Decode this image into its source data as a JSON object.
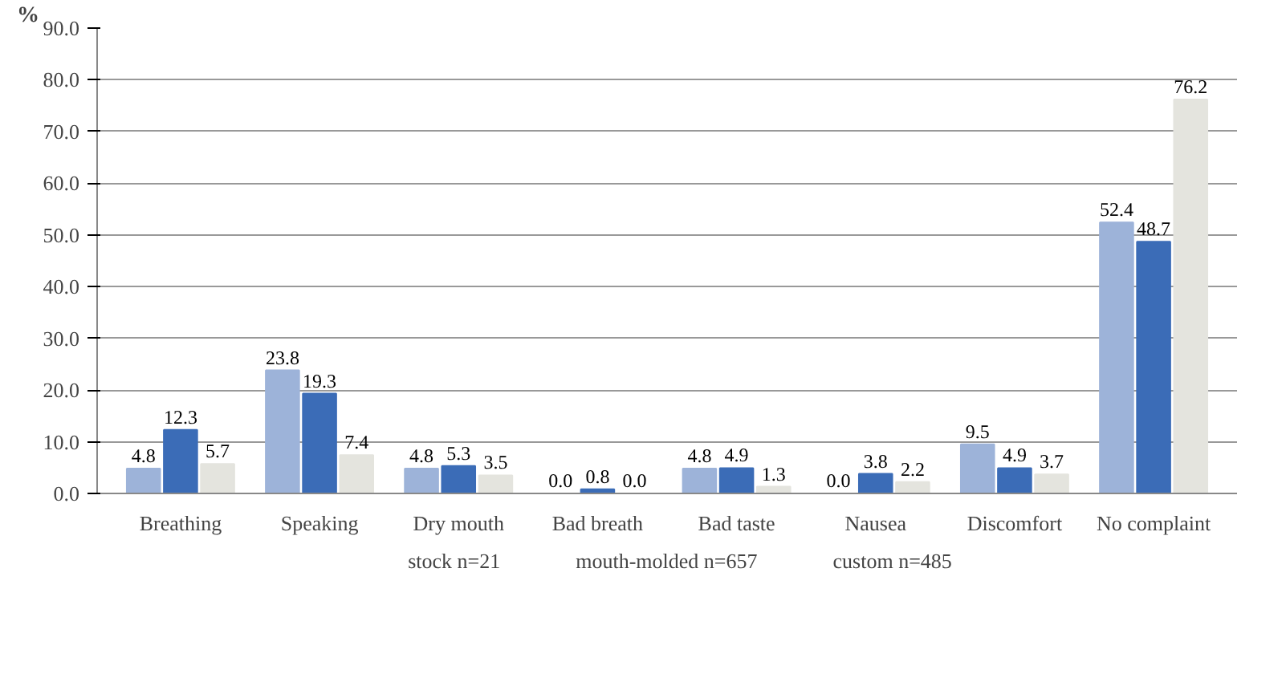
{
  "chart_data": {
    "type": "bar",
    "ylabel": "%",
    "categories": [
      "Breathing",
      "Speaking",
      "Dry mouth",
      "Bad breath",
      "Bad taste",
      "Nausea",
      "Discomfort",
      "No complaint"
    ],
    "series": [
      {
        "name": "stock n=21",
        "color": "#9db3d9",
        "values": [
          4.8,
          23.8,
          4.8,
          0.0,
          4.8,
          0.0,
          9.5,
          52.4
        ],
        "value_labels": [
          "4.8",
          "23.8",
          "4.8",
          "0.0",
          "4.8",
          "0.0",
          "9.5",
          "52.4"
        ]
      },
      {
        "name": "mouth-molded n=657",
        "color": "#3b6cb7",
        "values": [
          12.3,
          19.3,
          5.3,
          0.8,
          4.9,
          3.8,
          4.9,
          48.7
        ],
        "value_labels": [
          "12.3",
          "19.3",
          "5.3",
          "0.8",
          "4.9",
          "3.8",
          "4.9",
          "48.7"
        ]
      },
      {
        "name": "custom n=485",
        "color": "#e4e4de",
        "values": [
          5.7,
          7.4,
          3.5,
          0.0,
          1.3,
          2.2,
          3.7,
          76.2
        ],
        "value_labels": [
          "5.7",
          "7.4",
          "3.5",
          "0.0",
          "1.3",
          "2.2",
          "3.7",
          "76.2"
        ]
      }
    ],
    "ylim": [
      0,
      90
    ],
    "yticks": [
      {
        "value": 0,
        "label": "0.0"
      },
      {
        "value": 10,
        "label": "10.0"
      },
      {
        "value": 20,
        "label": "20.0"
      },
      {
        "value": 30,
        "label": "30.0"
      },
      {
        "value": 40,
        "label": "40.0"
      },
      {
        "value": 50,
        "label": "50.0"
      },
      {
        "value": 60,
        "label": "60.0"
      },
      {
        "value": 70,
        "label": "70.0"
      },
      {
        "value": 80,
        "label": "80.0"
      },
      {
        "value": 90,
        "label": "90.0"
      }
    ],
    "grid": "y",
    "legend": "bottom"
  }
}
